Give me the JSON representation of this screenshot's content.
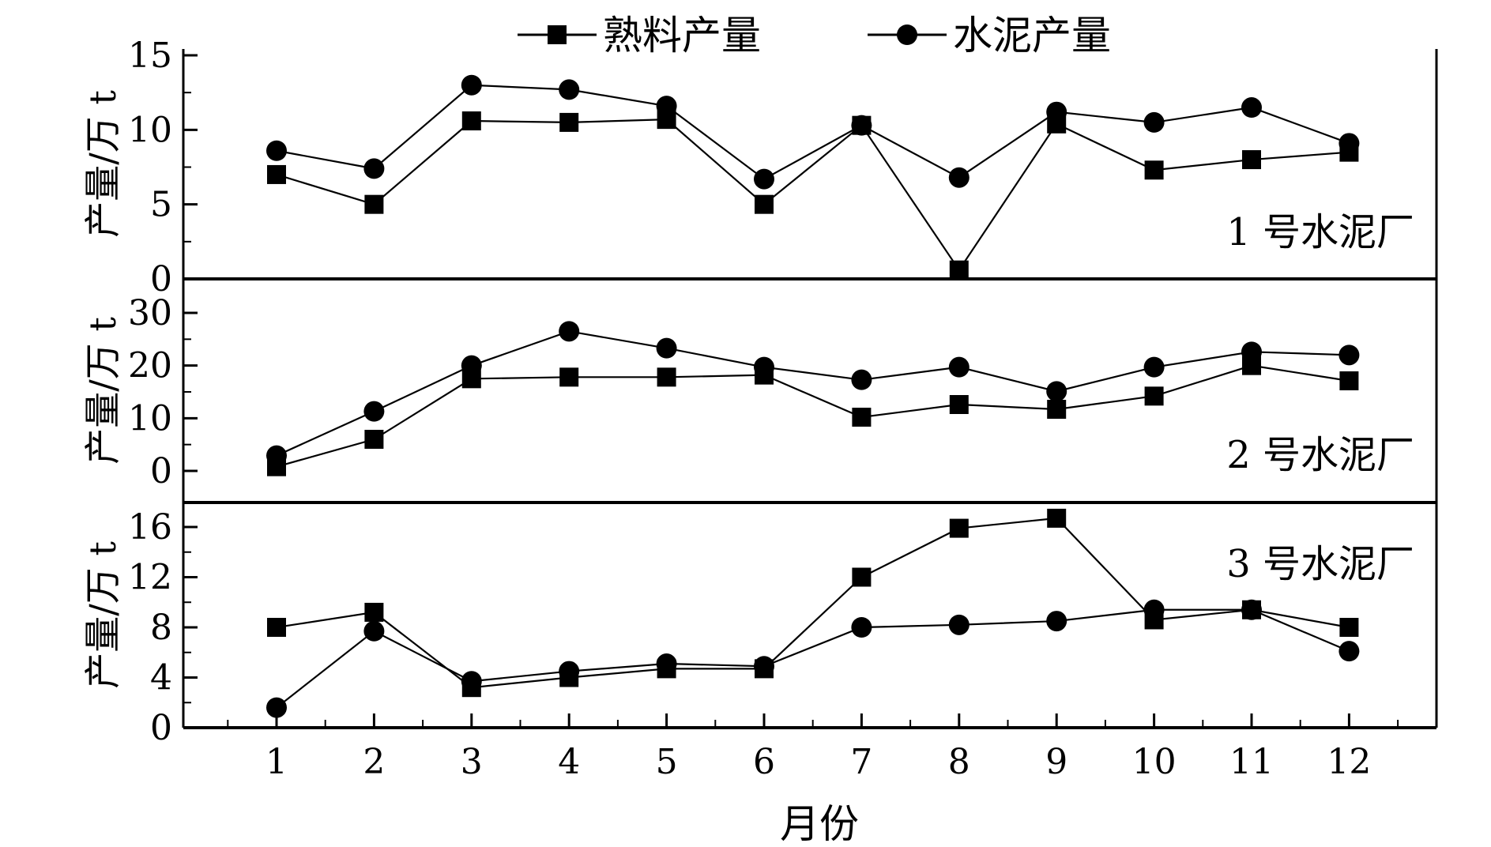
{
  "legend": {
    "clinker": "熟料产量",
    "cement": "水泥产量"
  },
  "chart_data": {
    "type": "line",
    "xlabel": "月份",
    "x": [
      1,
      2,
      3,
      4,
      5,
      6,
      7,
      8,
      9,
      10,
      11,
      12
    ],
    "legend_position": "top-center",
    "panels": [
      {
        "label": "1 号水泥厂",
        "ylabel": "产量/万 t",
        "ylim": [
          0,
          15
        ],
        "yticks": [
          0,
          5,
          10,
          15
        ],
        "series": [
          {
            "name": "熟料产量",
            "marker": "square",
            "values": [
              7.0,
              5.0,
              10.6,
              10.5,
              10.7,
              5.0,
              10.3,
              0.6,
              10.4,
              7.3,
              8.0,
              8.5
            ]
          },
          {
            "name": "水泥产量",
            "marker": "circle",
            "values": [
              8.6,
              7.4,
              13.0,
              12.7,
              11.6,
              6.7,
              10.3,
              6.8,
              11.2,
              10.5,
              11.5,
              9.1
            ]
          }
        ]
      },
      {
        "label": "2 号水泥厂",
        "ylabel": "产量/万 t",
        "ylim": [
          -5,
          32
        ],
        "yticks": [
          0,
          10,
          20,
          30
        ],
        "series": [
          {
            "name": "熟料产量",
            "marker": "square",
            "values": [
              0.8,
              6.0,
              17.5,
              17.8,
              17.8,
              18.2,
              10.2,
              12.6,
              11.7,
              14.2,
              20.0,
              17.1
            ]
          },
          {
            "name": "水泥产量",
            "marker": "circle",
            "values": [
              2.9,
              11.3,
              20.0,
              26.5,
              23.3,
              19.7,
              17.3,
              19.7,
              15.1,
              19.7,
              22.6,
              22.0
            ]
          }
        ]
      },
      {
        "label": "3 号水泥厂",
        "ylabel": "产量/万 t",
        "ylim": [
          0,
          18
        ],
        "yticks": [
          0,
          4,
          8,
          12,
          16
        ],
        "series": [
          {
            "name": "熟料产量",
            "marker": "square",
            "values": [
              8.0,
              9.2,
              3.2,
              4.0,
              4.7,
              4.7,
              12.0,
              15.9,
              16.7,
              8.6,
              9.4,
              8.0
            ]
          },
          {
            "name": "水泥产量",
            "marker": "circle",
            "values": [
              1.6,
              7.7,
              3.7,
              4.5,
              5.1,
              4.9,
              8.0,
              8.2,
              8.5,
              9.4,
              9.4,
              6.1
            ]
          }
        ]
      }
    ]
  }
}
